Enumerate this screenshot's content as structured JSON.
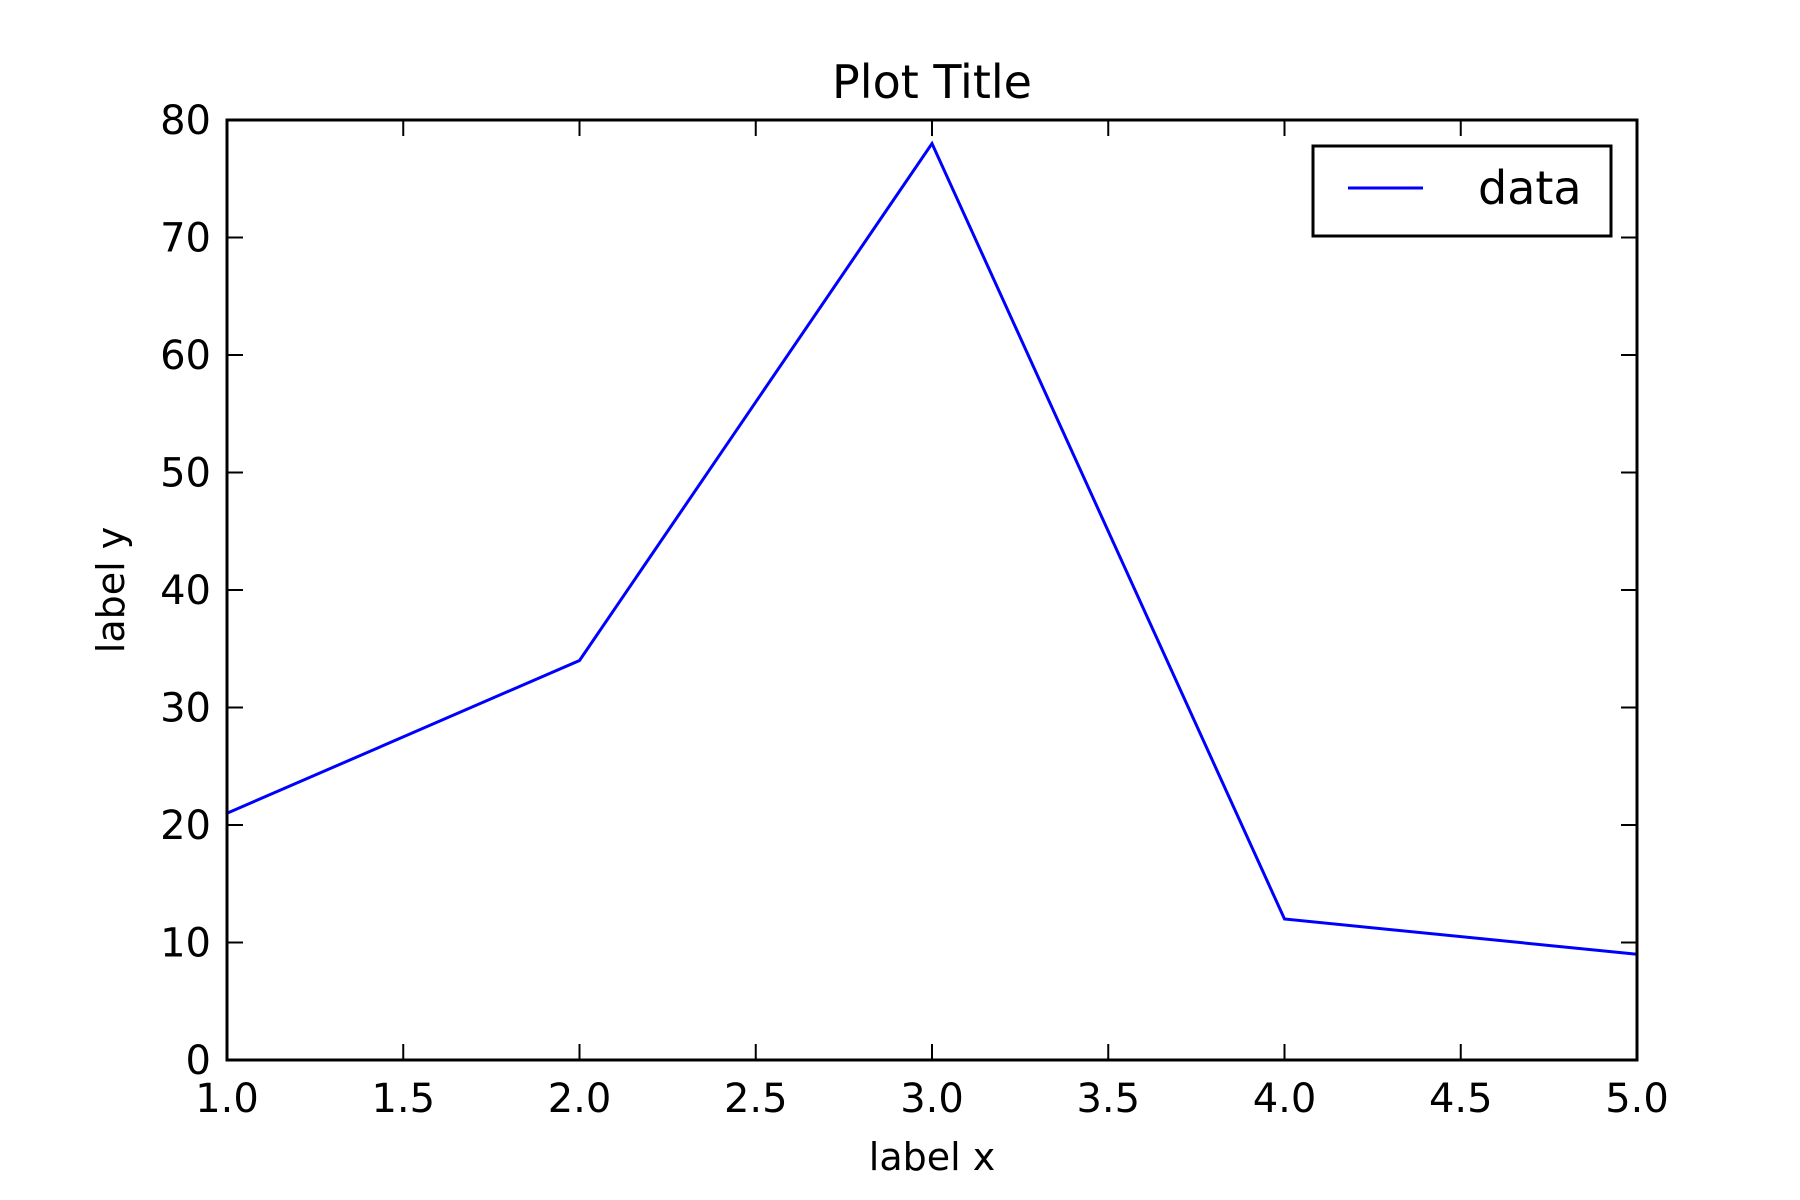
{
  "chart_data": {
    "type": "line",
    "title": "Plot Title",
    "xlabel": "label x",
    "ylabel": "label y",
    "xlim": [
      1.0,
      5.0
    ],
    "ylim": [
      0,
      80
    ],
    "xticks": [
      "1.0",
      "1.5",
      "2.0",
      "2.5",
      "3.0",
      "3.5",
      "4.0",
      "4.5",
      "5.0"
    ],
    "yticks": [
      "0",
      "10",
      "20",
      "30",
      "40",
      "50",
      "60",
      "70",
      "80"
    ],
    "grid": false,
    "legend_position": "top-right",
    "series": [
      {
        "name": "data",
        "color": "#0000ff",
        "x": [
          1,
          2,
          3,
          4,
          5
        ],
        "y": [
          21,
          34,
          78,
          12,
          9
        ]
      }
    ]
  }
}
